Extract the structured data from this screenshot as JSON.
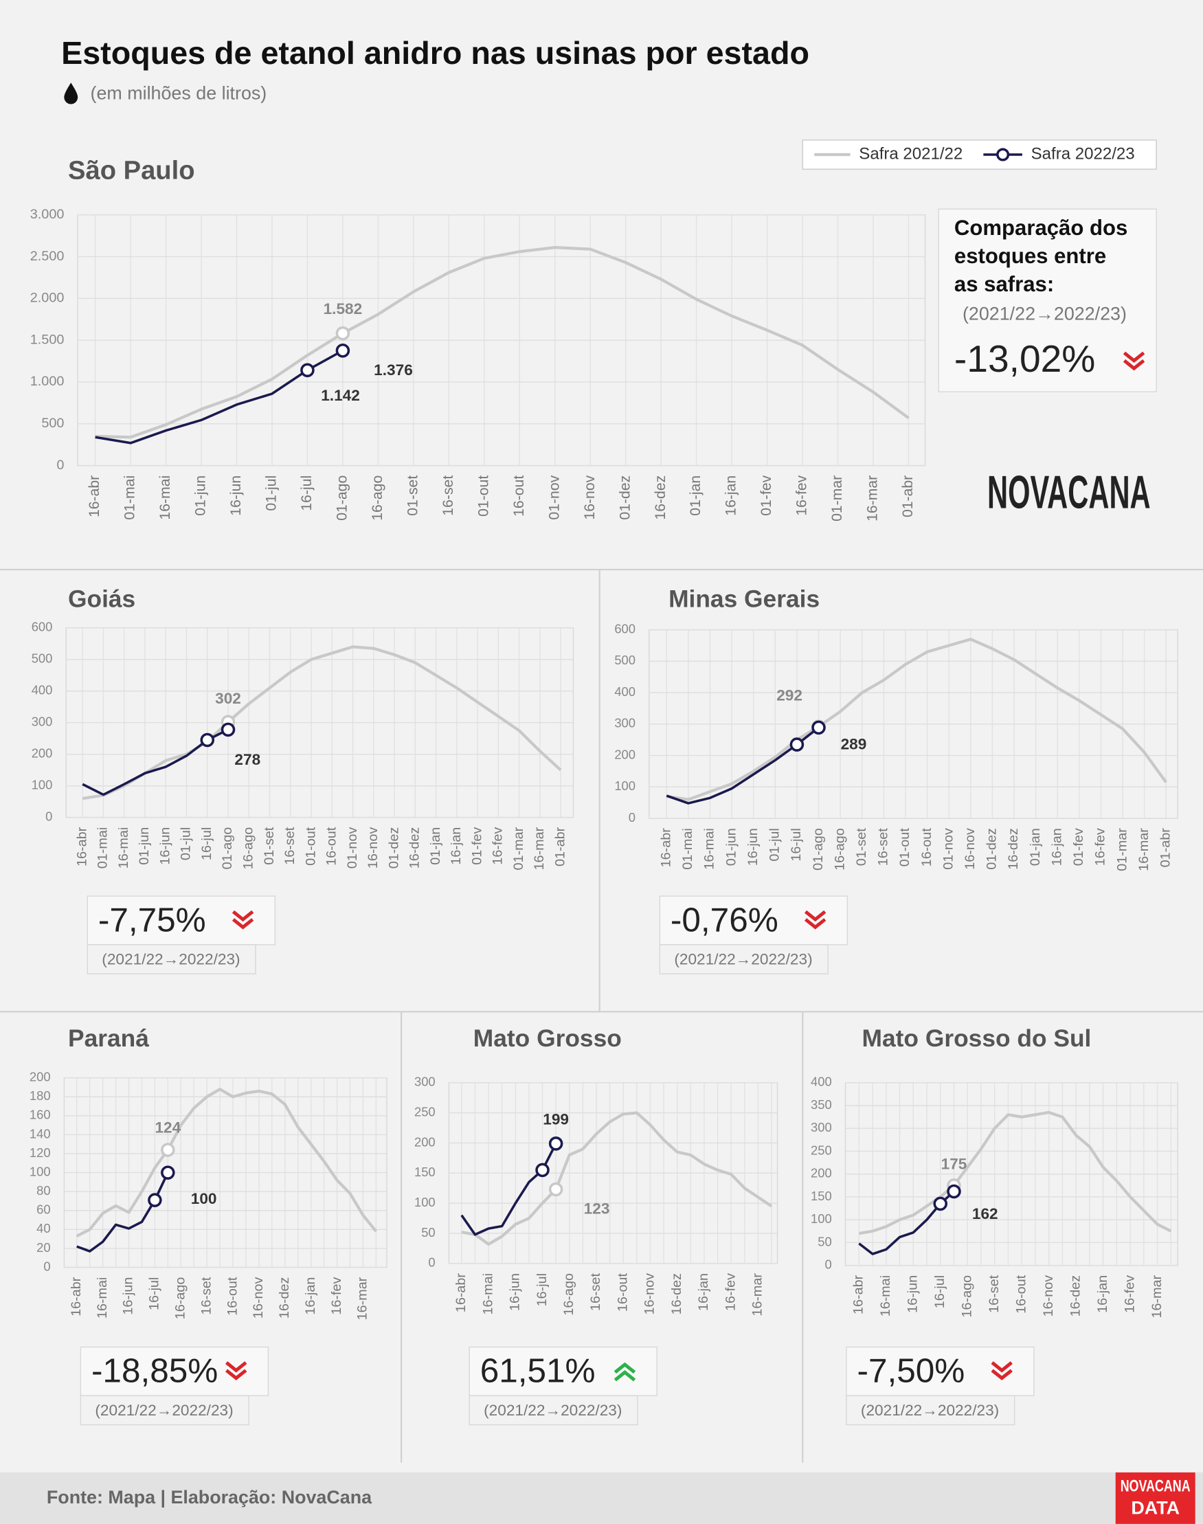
{
  "title": "Estoques de etanol anidro nas usinas por estado",
  "subtitle": "(em milhões de litros)",
  "source": "Fonte: Mapa | Elaboração: NovaCana",
  "logo": "NOVACANA",
  "logo_badge": [
    "NOVACANA",
    "DATA"
  ],
  "chart_data": [
    {
      "type": "line",
      "title": "São Paulo",
      "comparison_title": [
        "Comparação dos",
        "estoques entre",
        "as safras:"
      ],
      "comparison_label": "(2021/22→2022/23)",
      "change": -13.02,
      "change_label": "-13,02%",
      "grid": true,
      "categories": [
        "16-abr",
        "01-mai",
        "16-mai",
        "01-jun",
        "16-jun",
        "01-jul",
        "16-jul",
        "01-ago",
        "16-ago",
        "01-set",
        "16-set",
        "01-out",
        "16-out",
        "01-nov",
        "16-nov",
        "01-dez",
        "16-dez",
        "01-jan",
        "16-jan",
        "01-fev",
        "16-fev",
        "01-mar",
        "16-mar",
        "01-abr"
      ],
      "ylim": [
        0,
        3000
      ],
      "yticks": [
        0,
        500,
        {
          "value": 1000,
          "label": "1.000"
        },
        {
          "value": 1500,
          "label": "1.500"
        },
        {
          "value": 2000,
          "label": "2.000"
        },
        {
          "value": 2500,
          "label": "2.500"
        },
        {
          "value": 3000,
          "label": "3.000"
        }
      ],
      "series": [
        {
          "name": "Safra 2021/22",
          "color": "#c8c8c8",
          "values": [
            350,
            340,
            490,
            675,
            825,
            1035,
            1320,
            1582,
            1810,
            2080,
            2310,
            2480,
            2560,
            2610,
            2590,
            2430,
            2230,
            1990,
            1790,
            1620,
            1440,
            1150,
            880,
            570
          ],
          "value_labels": [
            null,
            null,
            null,
            null,
            null,
            null,
            null,
            "1.582",
            null,
            null,
            null,
            null,
            null,
            null,
            null,
            null,
            null,
            null,
            null,
            null,
            null,
            null,
            null,
            null
          ]
        },
        {
          "name": "Safra 2022/23",
          "color": "#1a1a4e",
          "marker": "circle",
          "values": [
            340,
            270,
            420,
            545,
            730,
            860,
            1142,
            1376,
            null,
            null,
            null,
            null,
            null,
            null,
            null,
            null,
            null,
            null,
            null,
            null,
            null,
            null,
            null,
            null
          ],
          "value_labels": [
            null,
            null,
            null,
            null,
            null,
            null,
            "1.142",
            "1.376",
            null,
            null,
            null,
            null,
            null,
            null,
            null,
            null,
            null,
            null,
            null,
            null,
            null,
            null,
            null,
            null
          ]
        }
      ]
    },
    {
      "type": "line",
      "title": "Goiás",
      "comparison_label": "(2021/22→2022/23)",
      "change": -7.75,
      "change_label": "-7,75%",
      "grid": true,
      "categories": [
        "16-abr",
        "01-mai",
        "16-mai",
        "01-jun",
        "16-jun",
        "01-jul",
        "16-jul",
        "01-ago",
        "16-ago",
        "01-set",
        "16-set",
        "01-out",
        "16-out",
        "01-nov",
        "16-nov",
        "01-dez",
        "16-dez",
        "01-jan",
        "16-jan",
        "01-fev",
        "16-fev",
        "01-mar",
        "16-mar",
        "01-abr"
      ],
      "ylim": [
        0,
        600
      ],
      "yticks": [
        0,
        100,
        200,
        300,
        400,
        500,
        600
      ],
      "series": [
        {
          "color": "#c8c8c8",
          "values": [
            60,
            70,
            100,
            140,
            180,
            200,
            240,
            302,
            360,
            410,
            460,
            500,
            520,
            540,
            535,
            515,
            490,
            450,
            410,
            365,
            320,
            275,
            210,
            150
          ],
          "value_labels": [
            null,
            null,
            null,
            null,
            null,
            null,
            null,
            "302",
            null,
            null,
            null,
            null,
            null,
            null,
            null,
            null,
            null,
            null,
            null,
            null,
            null,
            null,
            null,
            null
          ]
        },
        {
          "color": "#1a1a4e",
          "marker": "circle",
          "values": [
            105,
            72,
            105,
            140,
            160,
            195,
            245,
            278,
            null,
            null,
            null,
            null,
            null,
            null,
            null,
            null,
            null,
            null,
            null,
            null,
            null,
            null,
            null,
            null
          ],
          "value_labels": [
            null,
            null,
            null,
            null,
            null,
            null,
            null,
            "278",
            null,
            null,
            null,
            null,
            null,
            null,
            null,
            null,
            null,
            null,
            null,
            null,
            null,
            null,
            null,
            null
          ]
        }
      ]
    },
    {
      "type": "line",
      "title": "Minas Gerais",
      "comparison_label": "(2021/22→2022/23)",
      "change": -0.76,
      "change_label": "-0,76%",
      "grid": true,
      "categories": [
        "16-abr",
        "01-mai",
        "16-mai",
        "01-jun",
        "16-jun",
        "01-jul",
        "16-jul",
        "01-ago",
        "16-ago",
        "01-set",
        "16-set",
        "01-out",
        "16-out",
        "01-nov",
        "16-nov",
        "01-dez",
        "16-dez",
        "01-jan",
        "16-jan",
        "01-fev",
        "16-fev",
        "01-mar",
        "16-mar",
        "01-abr"
      ],
      "ylim": [
        0,
        600
      ],
      "yticks": [
        0,
        100,
        200,
        300,
        400,
        500,
        600
      ],
      "series": [
        {
          "color": "#c8c8c8",
          "values": [
            70,
            60,
            85,
            110,
            150,
            195,
            250,
            292,
            340,
            400,
            440,
            490,
            530,
            550,
            570,
            540,
            505,
            460,
            415,
            375,
            330,
            285,
            210,
            115
          ],
          "value_labels": [
            null,
            null,
            null,
            null,
            null,
            null,
            null,
            "292",
            null,
            null,
            null,
            null,
            null,
            null,
            null,
            null,
            null,
            null,
            null,
            null,
            null,
            null,
            null,
            null
          ]
        },
        {
          "color": "#1a1a4e",
          "marker": "circle",
          "values": [
            72,
            48,
            65,
            95,
            140,
            185,
            235,
            289,
            null,
            null,
            null,
            null,
            null,
            null,
            null,
            null,
            null,
            null,
            null,
            null,
            null,
            null,
            null,
            null
          ],
          "value_labels": [
            null,
            null,
            null,
            null,
            null,
            null,
            null,
            "289",
            null,
            null,
            null,
            null,
            null,
            null,
            null,
            null,
            null,
            null,
            null,
            null,
            null,
            null,
            null,
            null
          ]
        }
      ]
    },
    {
      "type": "line",
      "title": "Paraná",
      "comparison_label": "(2021/22→2022/23)",
      "change": -18.85,
      "change_label": "-18,85%",
      "grid": true,
      "categories": [
        "16-abr",
        null,
        "16-mai",
        null,
        "16-jun",
        null,
        "16-jul",
        null,
        "16-ago",
        null,
        "16-set",
        null,
        "16-out",
        null,
        "16-nov",
        null,
        "16-dez",
        null,
        "16-jan",
        null,
        "16-fev",
        null,
        "16-mar",
        null
      ],
      "ylim": [
        0,
        200
      ],
      "yticks": [
        0,
        20,
        40,
        60,
        80,
        100,
        120,
        140,
        160,
        180,
        200
      ],
      "series": [
        {
          "color": "#c8c8c8",
          "values": [
            33,
            40,
            57,
            65,
            58,
            80,
            105,
            124,
            150,
            168,
            180,
            188,
            180,
            184,
            186,
            183,
            172,
            148,
            130,
            112,
            92,
            78,
            55,
            38
          ],
          "value_labels": [
            null,
            null,
            null,
            null,
            null,
            null,
            null,
            "124",
            null,
            null,
            null,
            null,
            null,
            null,
            null,
            null,
            null,
            null,
            null,
            null,
            null,
            null,
            null,
            null
          ]
        },
        {
          "color": "#1a1a4e",
          "marker": "circle",
          "values": [
            22,
            17,
            27,
            45,
            41,
            48,
            71,
            100,
            null,
            null,
            null,
            null,
            null,
            null,
            null,
            null,
            null,
            null,
            null,
            null,
            null,
            null,
            null,
            null
          ],
          "value_labels": [
            null,
            null,
            null,
            null,
            null,
            null,
            null,
            "100",
            null,
            null,
            null,
            null,
            null,
            null,
            null,
            null,
            null,
            null,
            null,
            null,
            null,
            null,
            null,
            null
          ]
        }
      ]
    },
    {
      "type": "line",
      "title": "Mato Grosso",
      "comparison_label": "(2021/22→2022/23)",
      "change": 61.51,
      "change_label": "61,51%",
      "grid": true,
      "categories": [
        "16-abr",
        null,
        "16-mai",
        null,
        "16-jun",
        null,
        "16-jul",
        null,
        "16-ago",
        null,
        "16-set",
        null,
        "16-out",
        null,
        "16-nov",
        null,
        "16-dez",
        null,
        "16-jan",
        null,
        "16-fev",
        null,
        "16-mar",
        null
      ],
      "ylim": [
        0,
        300
      ],
      "yticks": [
        0,
        50,
        100,
        150,
        200,
        250,
        300
      ],
      "series": [
        {
          "color": "#c8c8c8",
          "values": [
            52,
            48,
            32,
            45,
            65,
            75,
            100,
            123,
            180,
            190,
            215,
            235,
            248,
            250,
            230,
            205,
            185,
            180,
            165,
            155,
            148,
            125,
            110,
            95
          ],
          "value_labels": [
            null,
            null,
            null,
            null,
            null,
            null,
            null,
            "123",
            null,
            null,
            null,
            null,
            null,
            null,
            null,
            null,
            null,
            null,
            null,
            null,
            null,
            null,
            null,
            null
          ]
        },
        {
          "color": "#1a1a4e",
          "marker": "circle",
          "values": [
            80,
            48,
            58,
            62,
            100,
            135,
            155,
            199,
            null,
            null,
            null,
            null,
            null,
            null,
            null,
            null,
            null,
            null,
            null,
            null,
            null,
            null,
            null,
            null
          ],
          "value_labels": [
            null,
            null,
            null,
            null,
            null,
            null,
            null,
            "199",
            null,
            null,
            null,
            null,
            null,
            null,
            null,
            null,
            null,
            null,
            null,
            null,
            null,
            null,
            null,
            null
          ]
        }
      ]
    },
    {
      "type": "line",
      "title": "Mato Grosso do Sul",
      "comparison_label": "(2021/22→2022/23)",
      "change": -7.5,
      "change_label": "-7,50%",
      "grid": true,
      "categories": [
        "16-abr",
        null,
        "16-mai",
        null,
        "16-jun",
        null,
        "16-jul",
        null,
        "16-ago",
        null,
        "16-set",
        null,
        "16-out",
        null,
        "16-nov",
        null,
        "16-dez",
        null,
        "16-jan",
        null,
        "16-fev",
        null,
        "16-mar",
        null
      ],
      "ylim": [
        0,
        400
      ],
      "yticks": [
        0,
        50,
        100,
        150,
        200,
        250,
        300,
        350,
        400
      ],
      "series": [
        {
          "color": "#c8c8c8",
          "values": [
            70,
            75,
            85,
            100,
            110,
            130,
            150,
            175,
            215,
            255,
            300,
            330,
            325,
            330,
            335,
            325,
            285,
            260,
            215,
            185,
            150,
            120,
            90,
            75
          ],
          "value_labels": [
            null,
            null,
            null,
            null,
            null,
            null,
            null,
            "175",
            null,
            null,
            null,
            null,
            null,
            null,
            null,
            null,
            null,
            null,
            null,
            null,
            null,
            null,
            null,
            null
          ]
        },
        {
          "color": "#1a1a4e",
          "marker": "circle",
          "values": [
            48,
            25,
            35,
            62,
            72,
            100,
            135,
            162,
            null,
            null,
            null,
            null,
            null,
            null,
            null,
            null,
            null,
            null,
            null,
            null,
            null,
            null,
            null,
            null
          ],
          "value_labels": [
            null,
            null,
            null,
            null,
            null,
            null,
            null,
            "162",
            null,
            null,
            null,
            null,
            null,
            null,
            null,
            null,
            null,
            null,
            null,
            null,
            null,
            null,
            null,
            null
          ]
        }
      ]
    }
  ]
}
